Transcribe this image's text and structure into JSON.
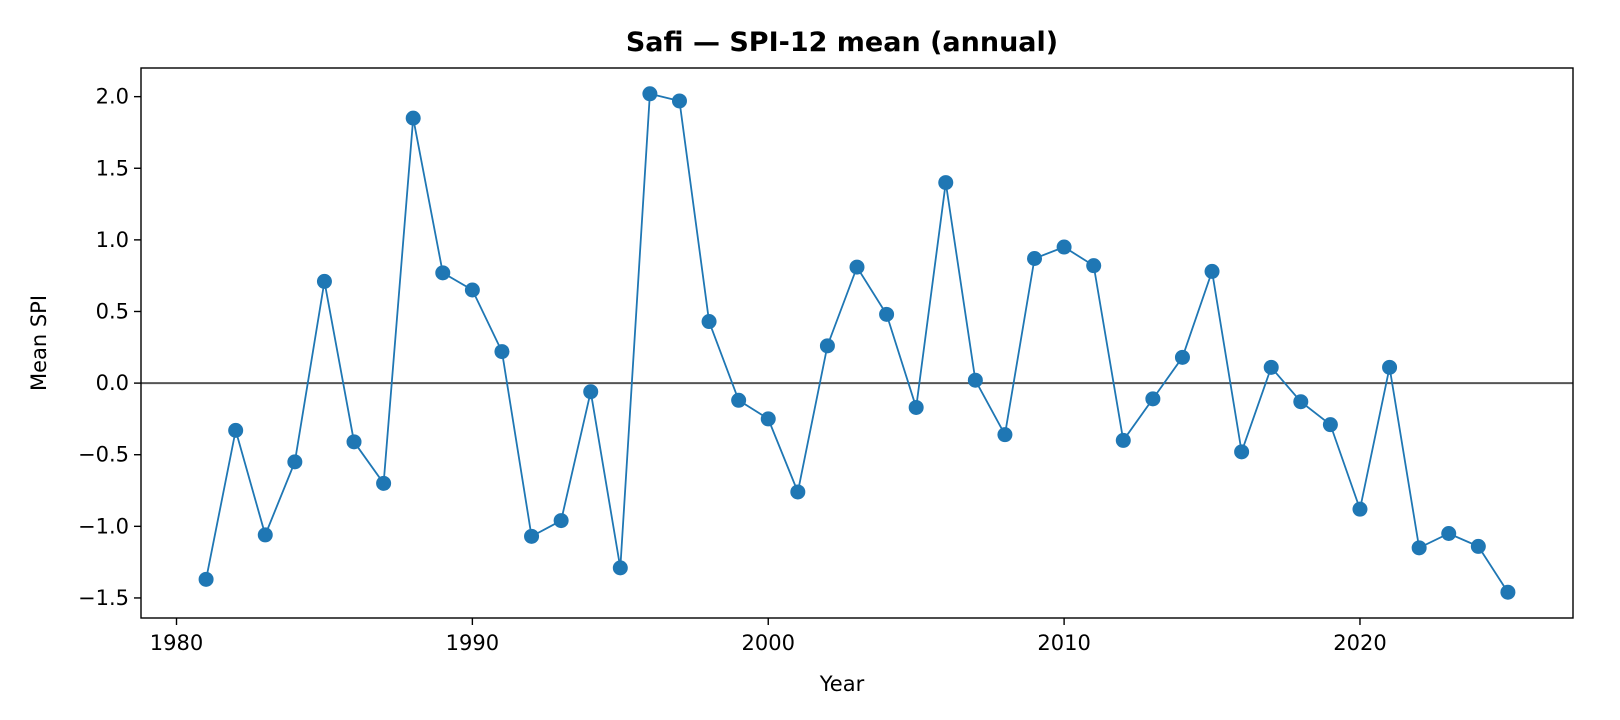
{
  "chart_data": {
    "type": "line",
    "title": "Safi — SPI-12 mean (annual)",
    "xlabel": "Year",
    "ylabel": "Mean SPI",
    "xlim": [
      1978.8,
      2027.2
    ],
    "ylim": [
      -1.64,
      2.2
    ],
    "x_ticks": [
      1980,
      1990,
      2000,
      2010,
      2020
    ],
    "x_tick_labels": [
      "1980",
      "1990",
      "2000",
      "2010",
      "2020"
    ],
    "y_ticks": [
      -1.5,
      -1.0,
      -0.5,
      0.0,
      0.5,
      1.0,
      1.5,
      2.0
    ],
    "y_tick_labels": [
      "−1.5",
      "−1.0",
      "−0.5",
      "0.0",
      "0.5",
      "1.0",
      "1.5",
      "2.0"
    ],
    "reference_line_y": 0.0,
    "grid": false,
    "legend": "none",
    "series_color": "#1f77b4",
    "reference_color": "#555555",
    "x": [
      1981,
      1982,
      1983,
      1984,
      1985,
      1986,
      1987,
      1988,
      1989,
      1990,
      1991,
      1992,
      1993,
      1994,
      1995,
      1996,
      1997,
      1998,
      1999,
      2000,
      2001,
      2002,
      2003,
      2004,
      2005,
      2006,
      2007,
      2008,
      2009,
      2010,
      2011,
      2012,
      2013,
      2014,
      2015,
      2016,
      2017,
      2018,
      2019,
      2020,
      2021,
      2022,
      2023,
      2024,
      2025
    ],
    "values": [
      -1.37,
      -0.33,
      -1.06,
      -0.55,
      0.71,
      -0.41,
      -0.7,
      1.85,
      0.77,
      0.65,
      0.22,
      -1.07,
      -0.96,
      -0.06,
      -1.29,
      2.02,
      1.97,
      0.43,
      -0.12,
      -0.25,
      -0.76,
      0.26,
      0.81,
      0.48,
      -0.17,
      1.4,
      0.02,
      -0.36,
      0.87,
      0.95,
      0.82,
      -0.4,
      -0.11,
      0.18,
      0.78,
      -0.48,
      0.11,
      -0.13,
      -0.29,
      -0.88,
      0.11,
      -1.15,
      -1.05,
      -1.14,
      -1.46
    ]
  }
}
